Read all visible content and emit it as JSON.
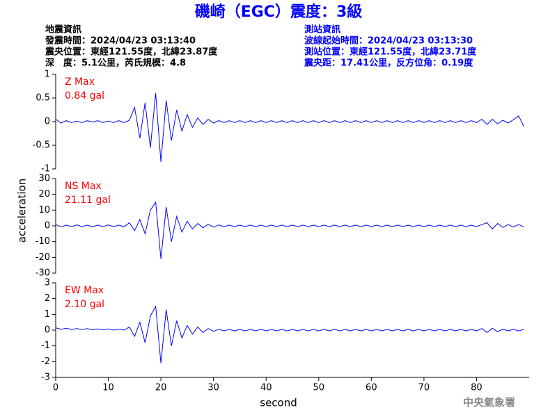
{
  "header": {
    "title": "磯崎（EGC）震度：3級",
    "left_heading": "地震資訊",
    "left_lines": [
      "發震時間：2024/04/23 03:13:40",
      "震央位置：東經121.55度，北緯23.87度",
      "深　度：5.1公里，芮氏規模：4.8"
    ],
    "right_heading": "測站資訊",
    "right_lines": [
      "波線起始時間：2024/04/23 03:13:30",
      "測站位置：東經121.55度，北緯23.71度",
      "震央距：17.41公里，反方位角：0.19度"
    ],
    "footer": "中央氣象署"
  },
  "chart_data": {
    "type": "line",
    "x_label": "second",
    "y_label": "acceleration",
    "xlim": [
      0,
      90
    ],
    "xticks": [
      0,
      10,
      20,
      30,
      40,
      50,
      60,
      70,
      80
    ],
    "x": [
      0,
      1,
      2,
      3,
      4,
      5,
      6,
      7,
      8,
      9,
      10,
      11,
      12,
      13,
      14,
      15,
      16,
      17,
      18,
      19,
      20,
      21,
      22,
      23,
      24,
      25,
      26,
      27,
      28,
      29,
      30,
      31,
      32,
      33,
      34,
      35,
      36,
      37,
      38,
      39,
      40,
      41,
      42,
      43,
      44,
      45,
      46,
      47,
      48,
      49,
      50,
      51,
      52,
      53,
      54,
      55,
      56,
      57,
      58,
      59,
      60,
      61,
      62,
      63,
      64,
      65,
      66,
      67,
      68,
      69,
      70,
      71,
      72,
      73,
      74,
      75,
      76,
      77,
      78,
      79,
      80,
      81,
      82,
      83,
      84,
      85,
      86,
      87,
      88,
      89
    ],
    "series": [
      {
        "name": "Z Max",
        "annotation": "0.84 gal",
        "color": "#0000ff",
        "ylim": [
          -1,
          1
        ],
        "yticks": [
          -1,
          -0.5,
          0,
          0.5,
          1
        ],
        "values": [
          0.05,
          -0.03,
          0.02,
          -0.02,
          0.01,
          -0.02,
          0.02,
          -0.01,
          0.02,
          -0.02,
          0.01,
          -0.02,
          0.02,
          -0.02,
          0.03,
          0.3,
          -0.35,
          0.4,
          -0.55,
          0.6,
          -0.85,
          0.45,
          -0.4,
          0.25,
          -0.2,
          0.15,
          -0.12,
          0.08,
          -0.06,
          0.05,
          -0.03,
          0.02,
          -0.02,
          0.02,
          -0.02,
          0.02,
          -0.02,
          0.02,
          -0.02,
          0.02,
          -0.02,
          0.02,
          -0.02,
          0.02,
          -0.02,
          0.02,
          -0.02,
          0.02,
          -0.02,
          0.02,
          -0.02,
          0.02,
          -0.02,
          0.02,
          -0.02,
          0.02,
          -0.02,
          0.02,
          -0.02,
          0.02,
          -0.02,
          0.02,
          -0.02,
          0.02,
          -0.02,
          0.02,
          -0.02,
          0.02,
          -0.02,
          0.02,
          -0.02,
          0.02,
          -0.02,
          0.02,
          -0.02,
          0.02,
          -0.02,
          0.02,
          -0.02,
          0.02,
          -0.02,
          0.05,
          -0.06,
          0.05,
          -0.05,
          0.03,
          -0.03,
          0.04,
          0.12,
          -0.1
        ]
      },
      {
        "name": "NS Max",
        "annotation": "21.11 gal",
        "color": "#0000ff",
        "ylim": [
          -30,
          30
        ],
        "yticks": [
          -30,
          -20,
          -10,
          0,
          10,
          20,
          30
        ],
        "values": [
          0.8,
          -0.6,
          0.5,
          -0.5,
          0.6,
          -0.5,
          0.5,
          -0.6,
          0.5,
          -0.5,
          0.6,
          -0.5,
          0.5,
          -0.6,
          2,
          -3,
          4,
          -5,
          10,
          15,
          -21,
          12,
          -10,
          6,
          -4,
          3,
          -2,
          1.5,
          -1.2,
          1,
          -0.8,
          0.6,
          -0.5,
          0.5,
          -0.5,
          0.5,
          -0.5,
          0.5,
          -0.5,
          0.5,
          -0.5,
          0.5,
          -0.5,
          0.5,
          -0.5,
          0.5,
          -0.5,
          0.5,
          -0.5,
          0.5,
          -0.5,
          0.5,
          -0.5,
          0.5,
          -0.5,
          0.5,
          -0.5,
          0.5,
          -0.5,
          0.5,
          -0.5,
          0.5,
          -0.5,
          0.5,
          -0.5,
          0.5,
          -0.5,
          0.5,
          -0.5,
          0.5,
          -0.5,
          0.5,
          -0.5,
          0.5,
          -0.5,
          0.5,
          -0.5,
          0.5,
          -0.5,
          0.5,
          -0.5,
          0.8,
          2,
          -2,
          1.5,
          -1,
          0.8,
          -0.7,
          0.8,
          -0.6
        ]
      },
      {
        "name": "EW Max",
        "annotation": "2.10 gal",
        "color": "#0000ff",
        "ylim": [
          -3,
          3
        ],
        "yticks": [
          -3,
          -2,
          -1,
          0,
          1,
          2,
          3
        ],
        "values": [
          0.15,
          0.05,
          0.12,
          0.04,
          0.1,
          0.03,
          0.1,
          0.02,
          0.08,
          0.02,
          0.08,
          0.0,
          0.06,
          0.0,
          0.2,
          -0.4,
          0.5,
          -0.8,
          0.9,
          1.5,
          -2.1,
          1.3,
          -1.0,
          0.6,
          -0.5,
          0.3,
          -0.25,
          0.2,
          -0.15,
          0.1,
          -0.08,
          0.06,
          -0.05,
          0.05,
          -0.05,
          0.05,
          -0.05,
          0.05,
          -0.05,
          0.05,
          -0.05,
          0.05,
          -0.05,
          0.05,
          -0.05,
          0.05,
          -0.05,
          0.05,
          -0.05,
          0.05,
          -0.05,
          0.05,
          -0.05,
          0.05,
          -0.05,
          0.05,
          -0.05,
          0.05,
          -0.05,
          0.05,
          -0.05,
          0.05,
          -0.05,
          0.05,
          -0.05,
          0.05,
          -0.05,
          0.05,
          -0.05,
          0.05,
          -0.05,
          0.05,
          -0.05,
          0.05,
          -0.05,
          0.05,
          -0.05,
          0.05,
          -0.05,
          0.05,
          -0.05,
          0.1,
          -0.15,
          0.12,
          -0.1,
          0.06,
          -0.05,
          0.05,
          -0.05,
          0.05
        ]
      }
    ]
  }
}
